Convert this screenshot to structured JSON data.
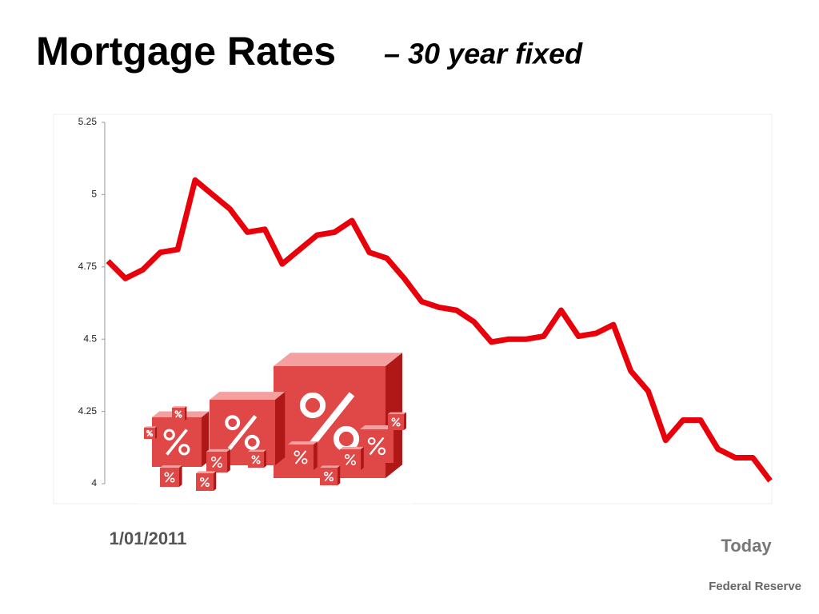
{
  "chart_data": {
    "type": "line",
    "title": "Mortgage Rates",
    "subtitle": "– 30 year fixed",
    "categories": [
      "1/01/2011",
      null,
      null,
      null,
      null,
      null,
      null,
      null,
      null,
      null,
      null,
      null,
      null,
      null,
      null,
      null,
      null,
      null,
      null,
      null,
      null,
      null,
      null,
      null,
      null,
      null,
      null,
      null,
      null,
      null,
      null,
      null,
      null,
      null,
      null,
      null,
      null,
      null,
      "Today"
    ],
    "values": [
      4.77,
      4.71,
      4.74,
      4.8,
      4.81,
      5.05,
      5,
      4.95,
      4.87,
      4.88,
      4.76,
      4.81,
      4.86,
      4.87,
      4.91,
      4.8,
      4.78,
      4.71,
      4.63,
      4.61,
      4.6,
      4.56,
      4.49,
      4.5,
      4.5,
      4.51,
      4.6,
      4.51,
      4.52,
      4.55,
      4.39,
      4.32,
      4.15,
      4.22,
      4.22,
      4.12,
      4.09,
      4.09,
      4.01
    ],
    "color": "#e8000b",
    "ylim": [
      4,
      5.25
    ],
    "yticks": [
      4,
      4.25,
      4.5,
      4.75,
      5,
      5.25
    ],
    "grid": false,
    "source": "Federal Reserve"
  }
}
